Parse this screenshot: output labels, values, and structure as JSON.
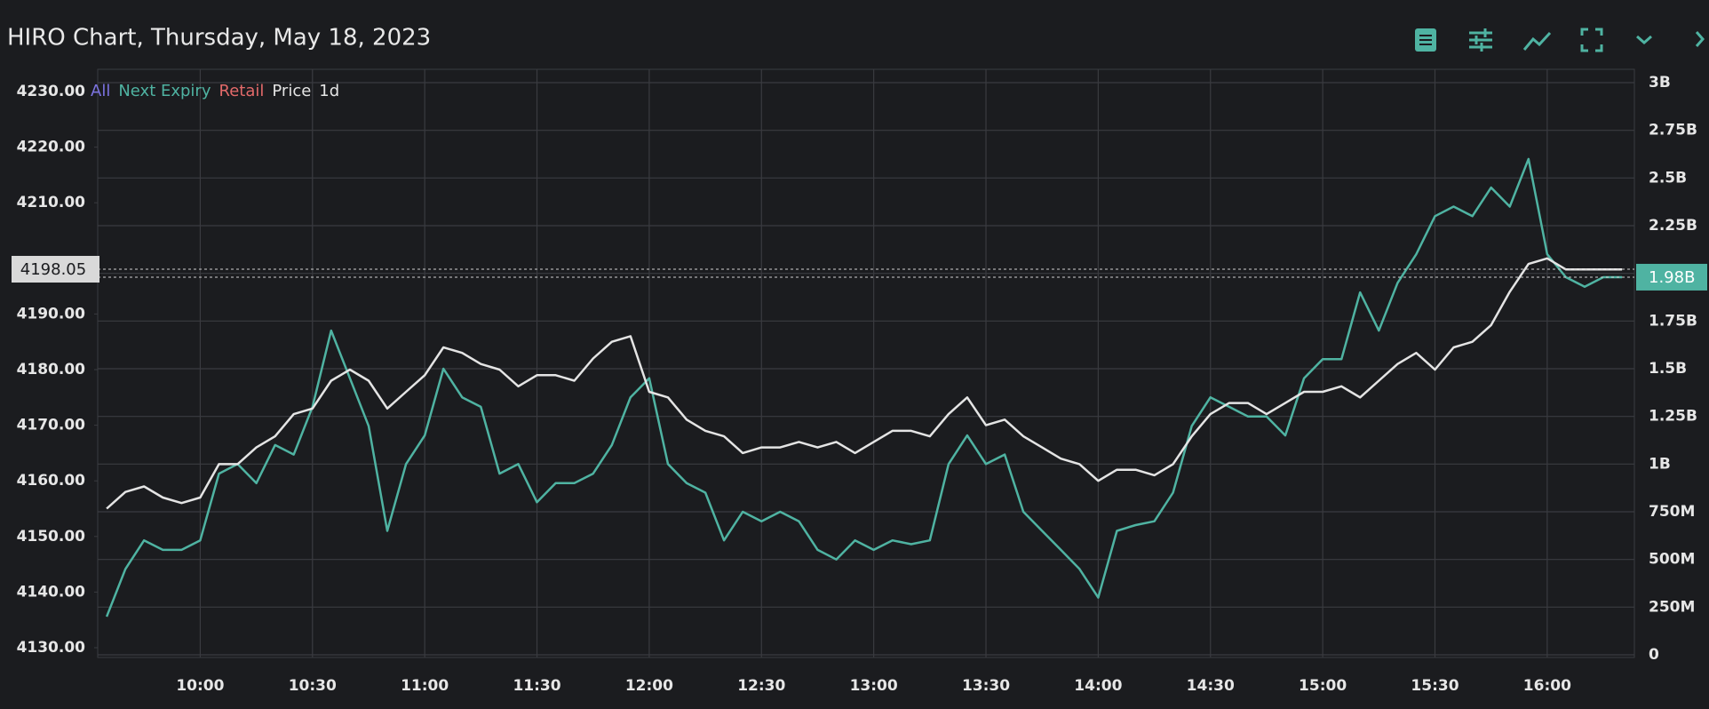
{
  "chart_data": {
    "type": "line",
    "title": "HIRO Chart, Thursday, May 18, 2023",
    "timeframe": "1d",
    "grid": true,
    "series": [
      {
        "name": "All",
        "color": "#7b73e0",
        "visible": false
      },
      {
        "name": "Next Expiry",
        "color": "#4fb3a2",
        "axis": "y2",
        "visible": true,
        "values": [
          0.2,
          0.45,
          0.6,
          0.55,
          0.55,
          0.6,
          0.95,
          1.0,
          0.9,
          1.1,
          1.05,
          1.3,
          1.7,
          1.45,
          1.2,
          0.65,
          1.0,
          1.15,
          1.5,
          1.35,
          1.3,
          0.95,
          1.0,
          0.8,
          0.9,
          0.9,
          0.95,
          1.1,
          1.35,
          1.45,
          1.0,
          0.9,
          0.85,
          0.6,
          0.75,
          0.7,
          0.75,
          0.7,
          0.55,
          0.5,
          0.6,
          0.55,
          0.6,
          0.58,
          0.6,
          1.0,
          1.15,
          1.0,
          1.05,
          0.75,
          0.65,
          0.55,
          0.45,
          0.3,
          0.65,
          0.68,
          0.7,
          0.85,
          1.2,
          1.35,
          1.3,
          1.25,
          1.25,
          1.15,
          1.45,
          1.55,
          1.55,
          1.9,
          1.7,
          1.95,
          2.1,
          2.3,
          2.35,
          2.3,
          2.45,
          2.35,
          2.6,
          2.1,
          1.98,
          1.93,
          1.98,
          1.98
        ]
      },
      {
        "name": "Retail",
        "color": "#e36a6a",
        "visible": false
      },
      {
        "name": "Price",
        "color": "#e4e4e4",
        "axis": "y",
        "visible": true,
        "values": [
          4155,
          4158,
          4159,
          4157,
          4156,
          4157,
          4163,
          4163,
          4166,
          4168,
          4172,
          4173,
          4178,
          4180,
          4178,
          4173,
          4176,
          4179,
          4184,
          4183,
          4181,
          4180,
          4177,
          4179,
          4179,
          4178,
          4182,
          4185,
          4186,
          4176,
          4175,
          4171,
          4169,
          4168,
          4165,
          4166,
          4166,
          4167,
          4166,
          4167,
          4165,
          4167,
          4169,
          4169,
          4168,
          4172,
          4175,
          4170,
          4171,
          4168,
          4166,
          4164,
          4163,
          4160,
          4162,
          4162,
          4161,
          4163,
          4168,
          4172,
          4174,
          4174,
          4172,
          4174,
          4176,
          4176,
          4177,
          4175,
          4178,
          4181,
          4183,
          4180,
          4184,
          4185,
          4188,
          4194,
          4199,
          4200,
          4198,
          4198,
          4198,
          4198
        ]
      }
    ],
    "x": [
      575,
      580,
      585,
      590,
      595,
      600,
      605,
      610,
      615,
      620,
      625,
      630,
      635,
      640,
      645,
      650,
      655,
      660,
      665,
      670,
      675,
      680,
      685,
      690,
      695,
      700,
      705,
      710,
      715,
      720,
      725,
      730,
      735,
      740,
      745,
      750,
      755,
      760,
      765,
      770,
      775,
      780,
      785,
      790,
      795,
      800,
      805,
      810,
      815,
      820,
      825,
      830,
      835,
      840,
      845,
      850,
      855,
      860,
      865,
      870,
      875,
      880,
      885,
      890,
      895,
      900,
      905,
      910,
      915,
      920,
      925,
      930,
      935,
      940,
      945,
      950,
      955,
      960,
      965,
      970,
      975,
      980
    ],
    "xlim": [
      572.6,
      983.3
    ],
    "xticks": [
      {
        "value": 600,
        "label": "10:00"
      },
      {
        "value": 630,
        "label": "10:30"
      },
      {
        "value": 660,
        "label": "11:00"
      },
      {
        "value": 690,
        "label": "11:30"
      },
      {
        "value": 720,
        "label": "12:00"
      },
      {
        "value": 750,
        "label": "12:30"
      },
      {
        "value": 780,
        "label": "13:00"
      },
      {
        "value": 810,
        "label": "13:30"
      },
      {
        "value": 840,
        "label": "14:00"
      },
      {
        "value": 870,
        "label": "14:30"
      },
      {
        "value": 900,
        "label": "15:00"
      },
      {
        "value": 930,
        "label": "15:30"
      },
      {
        "value": 960,
        "label": "16:00"
      }
    ],
    "ylim": [
      4130,
      4230
    ],
    "yticks": [
      {
        "value": 4130,
        "label": "4130.00"
      },
      {
        "value": 4140,
        "label": "4140.00"
      },
      {
        "value": 4150,
        "label": "4150.00"
      },
      {
        "value": 4160,
        "label": "4160.00"
      },
      {
        "value": 4170,
        "label": "4170.00"
      },
      {
        "value": 4180,
        "label": "4180.00"
      },
      {
        "value": 4190,
        "label": "4190.00"
      },
      {
        "value": 4210,
        "label": "4210.00"
      },
      {
        "value": 4220,
        "label": "4220.00"
      },
      {
        "value": 4230,
        "label": "4230.00"
      }
    ],
    "y2lim": [
      0,
      3.045
    ],
    "y2ticks": [
      0,
      {
        "value": 0.25,
        "label": "250M"
      },
      {
        "value": 0.5,
        "label": "500M"
      },
      {
        "value": 0.75,
        "label": "750M"
      },
      {
        "value": 1,
        "label": "1B"
      },
      {
        "value": 1.25,
        "label": "1.25B"
      },
      {
        "value": 1.5,
        "label": "1.5B"
      },
      {
        "value": 1.75,
        "label": "1.75B"
      },
      {
        "value": 2,
        "label": "2B"
      },
      {
        "value": 2.25,
        "label": "2.25B"
      },
      {
        "value": 2.5,
        "label": "2.5B"
      },
      {
        "value": 2.75,
        "label": "2.75B"
      },
      {
        "value": 3,
        "label": "3B"
      }
    ],
    "price_marker": {
      "value": 4198.05,
      "label": "4198.05"
    },
    "y2_marker": {
      "value": 1.98,
      "label": "1.98B"
    }
  }
}
